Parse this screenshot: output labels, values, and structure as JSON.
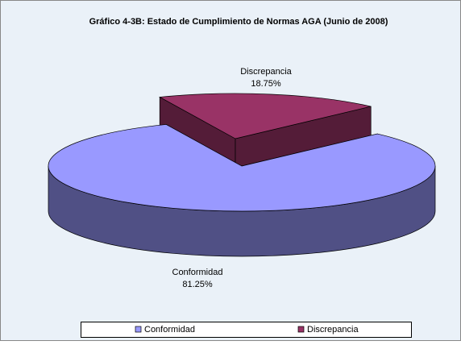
{
  "chart_data": {
    "type": "pie",
    "title": "Gráfico 4-3B: Estado de Cumplimiento de Normas AGA (Junio de 2008)",
    "categories": [
      "Conformidad",
      "Discrepancia"
    ],
    "values": [
      81.25,
      18.75
    ],
    "value_labels": [
      "81.25%",
      "18.75%"
    ],
    "colors": [
      "#9999ff",
      "#993366"
    ],
    "legend": "bottom"
  }
}
